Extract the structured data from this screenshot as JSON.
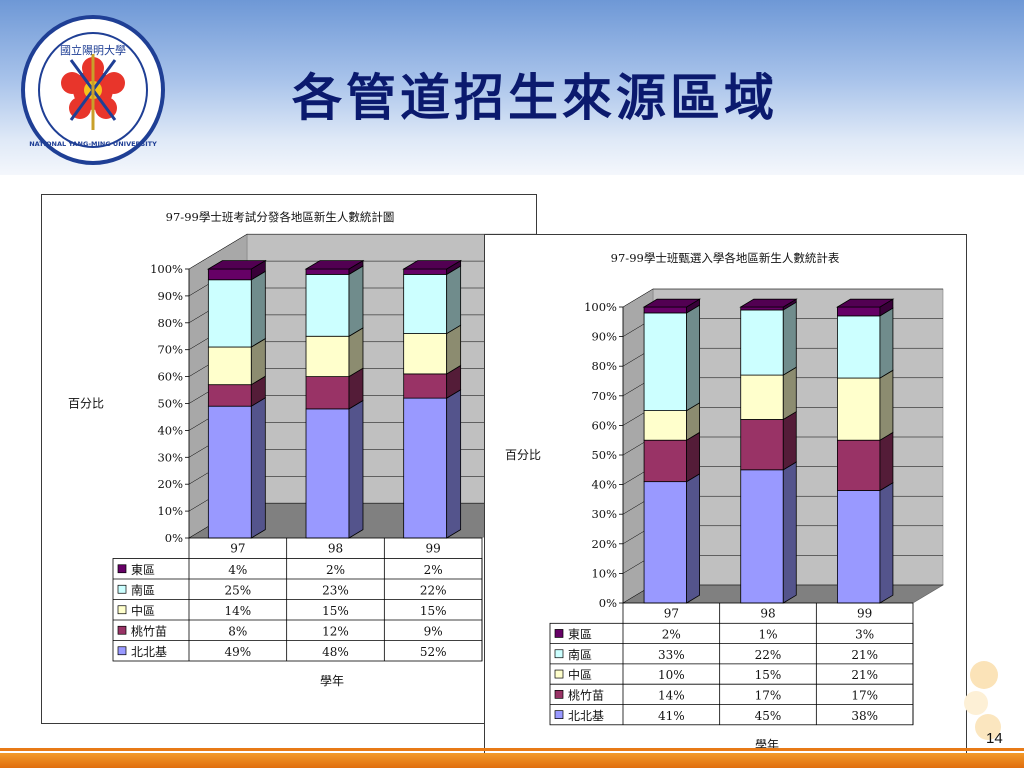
{
  "slide": {
    "title": "各管道招生來源區域",
    "page_number": "14"
  },
  "logo": {
    "ring_text": "NATIONAL YANG-MING UNIVERSITY",
    "chars": "國立陽明大學"
  },
  "colors": {
    "header_top": "#6e98d6",
    "title": "#0b1a6e",
    "footer": "#e87a16"
  },
  "chart_data": [
    {
      "type": "bar",
      "stacked": true,
      "percent": true,
      "title": "97-99學士班考試分發各地區新生人數統計圖",
      "ylabel": "百分比",
      "xlabel": "學年",
      "ylim": [
        0,
        100
      ],
      "yticks": [
        "0%",
        "10%",
        "20%",
        "30%",
        "40%",
        "50%",
        "60%",
        "70%",
        "80%",
        "90%",
        "100%"
      ],
      "grid": true,
      "categories": [
        "97",
        "98",
        "99"
      ],
      "series": [
        {
          "name": "北北基",
          "color": "#9999ff",
          "values": [
            49,
            48,
            52
          ],
          "labels": [
            "49%",
            "48%",
            "52%"
          ]
        },
        {
          "name": "桃竹苗",
          "color": "#993366",
          "values": [
            8,
            12,
            9
          ],
          "labels": [
            "8%",
            "12%",
            "9%"
          ]
        },
        {
          "name": "中區",
          "color": "#ffffcc",
          "values": [
            14,
            15,
            15
          ],
          "labels": [
            "14%",
            "15%",
            "15%"
          ]
        },
        {
          "name": "南區",
          "color": "#ccffff",
          "values": [
            25,
            23,
            22
          ],
          "labels": [
            "25%",
            "23%",
            "22%"
          ]
        },
        {
          "name": "東區",
          "color": "#660066",
          "values": [
            4,
            2,
            2
          ],
          "labels": [
            "4%",
            "2%",
            "2%"
          ]
        }
      ]
    },
    {
      "type": "bar",
      "stacked": true,
      "percent": true,
      "title": "97-99學士班甄選入學各地區新生人數統計表",
      "ylabel": "百分比",
      "xlabel": "學年",
      "ylim": [
        0,
        100
      ],
      "yticks": [
        "0%",
        "10%",
        "20%",
        "30%",
        "40%",
        "50%",
        "60%",
        "70%",
        "80%",
        "90%",
        "100%"
      ],
      "grid": true,
      "categories": [
        "97",
        "98",
        "99"
      ],
      "series": [
        {
          "name": "北北基",
          "color": "#9999ff",
          "values": [
            41,
            45,
            38
          ],
          "labels": [
            "41%",
            "45%",
            "38%"
          ]
        },
        {
          "name": "桃竹苗",
          "color": "#993366",
          "values": [
            14,
            17,
            17
          ],
          "labels": [
            "14%",
            "17%",
            "17%"
          ]
        },
        {
          "name": "中區",
          "color": "#ffffcc",
          "values": [
            10,
            15,
            21
          ],
          "labels": [
            "10%",
            "15%",
            "21%"
          ]
        },
        {
          "name": "南區",
          "color": "#ccffff",
          "values": [
            33,
            22,
            21
          ],
          "labels": [
            "33%",
            "22%",
            "21%"
          ]
        },
        {
          "name": "東區",
          "color": "#660066",
          "values": [
            2,
            1,
            3
          ],
          "labels": [
            "2%",
            "1%",
            "3%"
          ]
        }
      ]
    }
  ]
}
